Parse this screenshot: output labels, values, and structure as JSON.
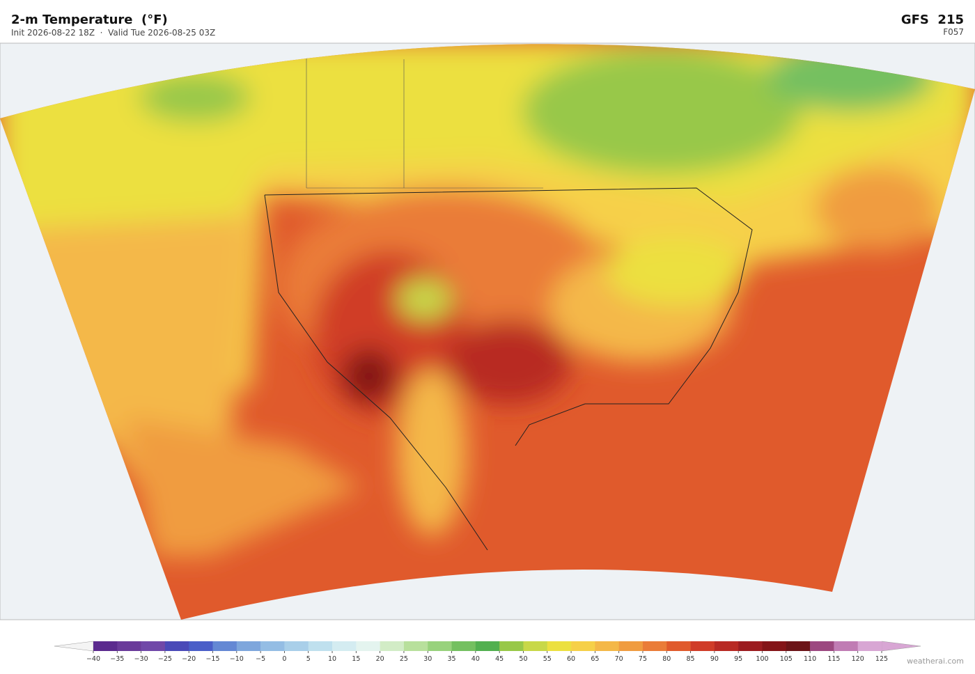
{
  "header": {
    "title": "2-m Temperature  (°F)",
    "subtitle": "Init 2026-08-22 18Z  ·  Valid Tue 2026-08-25 03Z",
    "model": "GFS  215",
    "forecast_hour": "F057"
  },
  "colorbar": {
    "ticks": [
      {
        "value": -40,
        "label": "−40"
      },
      {
        "value": -35,
        "label": "−35"
      },
      {
        "value": -30,
        "label": "−30"
      },
      {
        "value": -25,
        "label": "−25"
      },
      {
        "value": -20,
        "label": "−20"
      },
      {
        "value": -15,
        "label": "−15"
      },
      {
        "value": -10,
        "label": "−10"
      },
      {
        "value": -5,
        "label": "−5"
      },
      0,
      5,
      10,
      15,
      20,
      25,
      30,
      35,
      40,
      45,
      50,
      55,
      60,
      65,
      70,
      75,
      80,
      85,
      90,
      95,
      100,
      105,
      110,
      115,
      120,
      125
    ],
    "colors": [
      "#5b2a8e",
      "#6a3a9a",
      "#7048a8",
      "#4a4ab8",
      "#4a5ec8",
      "#6488d4",
      "#7ea6dc",
      "#94bde4",
      "#a9cfe9",
      "#bfe0ee",
      "#d4ecf1",
      "#e4f4ef",
      "#d2ecc6",
      "#b8e09c",
      "#98d27c",
      "#74c060",
      "#52b050",
      "#98c848",
      "#c8d848",
      "#ece040",
      "#f6d048",
      "#f4b848",
      "#f09c40",
      "#ea7c38",
      "#e05a2c",
      "#d03c28",
      "#b82a24",
      "#9c1c20",
      "#841418",
      "#6c1418",
      "#9c4880",
      "#c07cb4",
      "#d8a6d4"
    ],
    "under_color": "#f4f4f4",
    "over_color": "#d8a6d4"
  },
  "credit": "weatherai.com"
}
